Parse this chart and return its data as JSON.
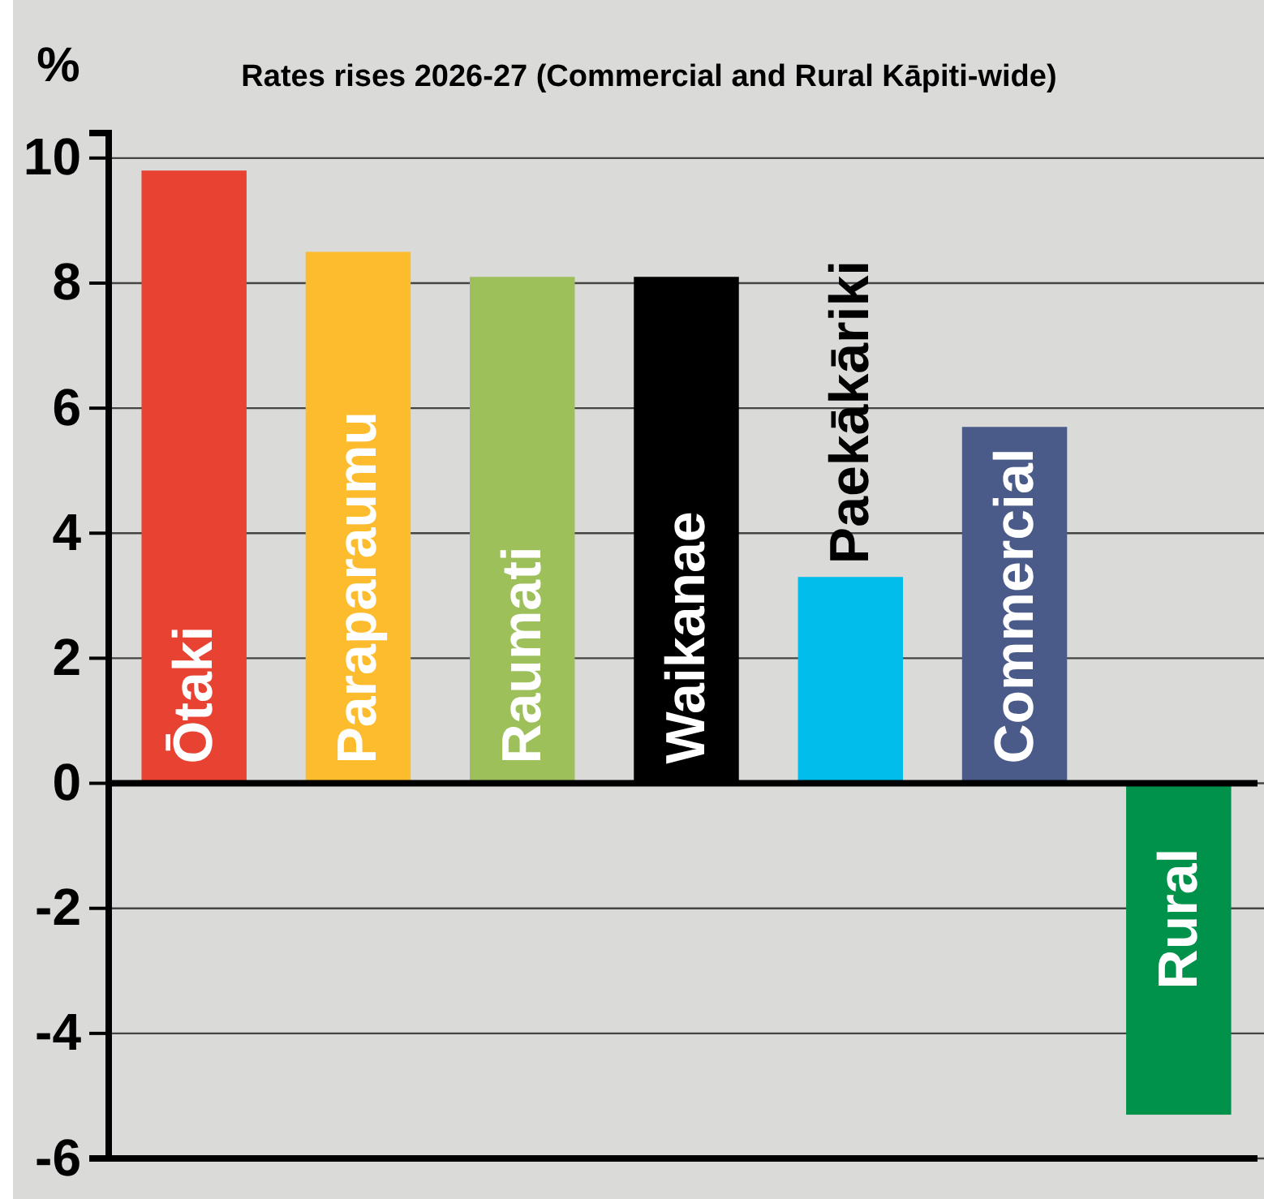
{
  "chart_data": {
    "type": "bar",
    "title": "Rates rises 2026-27 (Commercial and Rural Kāpiti-wide)",
    "ylabel": "%",
    "categories": [
      "Ōtaki",
      "Paraparaumu",
      "Raumati",
      "Waikanae",
      "Paekākāriki",
      "Commercial",
      "Rural"
    ],
    "values": [
      9.8,
      8.5,
      8.1,
      8.1,
      3.3,
      5.7,
      -5.3
    ],
    "colors": [
      "#e84232",
      "#fdbb2e",
      "#9dc05a",
      "#000000",
      "#00bdec",
      "#4a5b8a",
      "#00924a"
    ],
    "ylim": [
      -6,
      10.4
    ],
    "yticks": [
      -6,
      -4,
      -2,
      0,
      2,
      4,
      6,
      8,
      10
    ],
    "grid": "y"
  }
}
